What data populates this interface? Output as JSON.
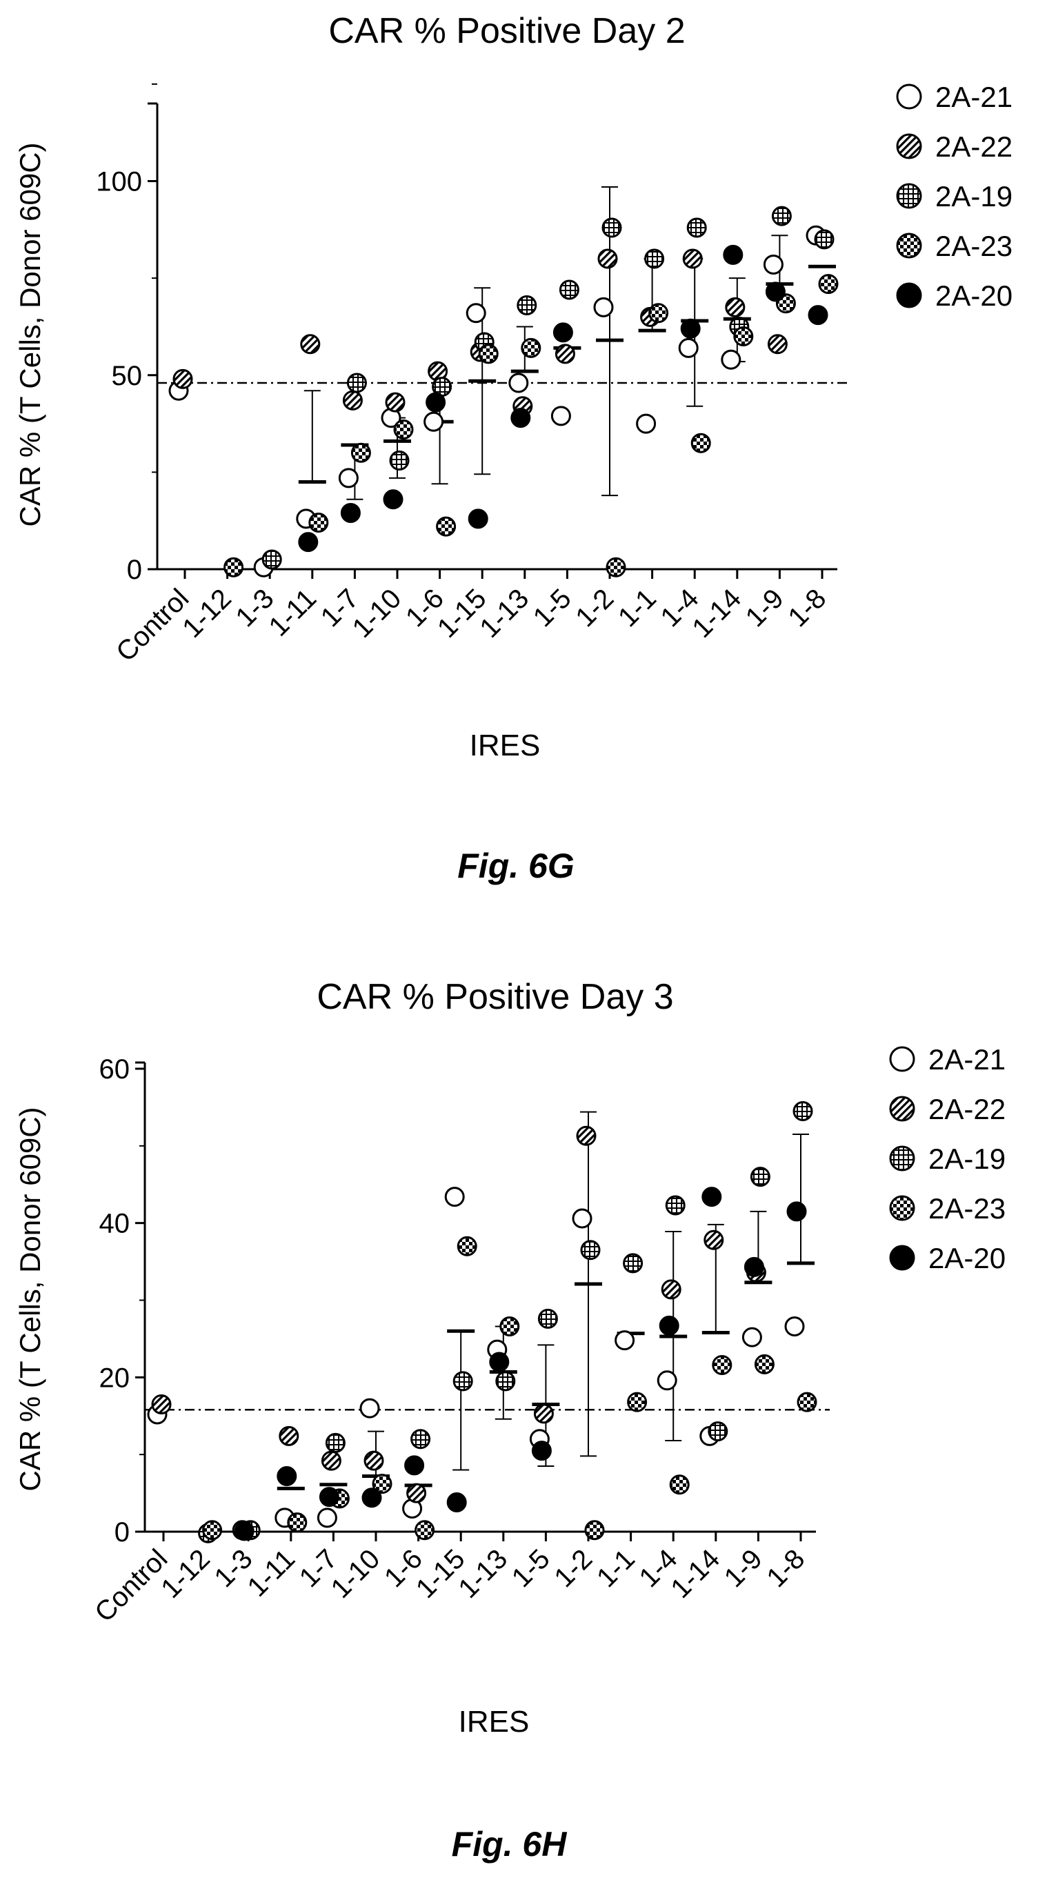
{
  "legend_labels": [
    "2A-21",
    "2A-22",
    "2A-19",
    "2A-23",
    "2A-20"
  ],
  "chart_data": [
    {
      "type": "scatter",
      "title": "CAR % Positive Day 2",
      "xlabel": "IRES",
      "ylabel": "CAR % (T Cells, Donor 609C)",
      "figure_label": "Fig. 6G",
      "yticks": [
        "0",
        "50",
        "100"
      ],
      "ylim": [
        0,
        120
      ],
      "reference_line": 48,
      "categories": [
        "Control",
        "1-12",
        "1-3",
        "1-11",
        "1-7",
        "1-10",
        "1-6",
        "1-15",
        "1-13",
        "1-5",
        "1-2",
        "1-1",
        "1-4",
        "1-14",
        "1-9",
        "1-8"
      ],
      "legend_position": "top-right",
      "series": [
        {
          "name": "2A-21",
          "pattern": "open",
          "values": [
            46,
            null,
            0.5,
            13,
            23.5,
            39,
            38,
            66,
            48,
            39.5,
            67.5,
            37.5,
            57,
            54,
            78.5,
            86
          ]
        },
        {
          "name": "2A-22",
          "pattern": "striped",
          "values": [
            49,
            null,
            null,
            58,
            43.5,
            43,
            51,
            56,
            42,
            55.5,
            80,
            65,
            80,
            67.5,
            58,
            null
          ]
        },
        {
          "name": "2A-19",
          "pattern": "grid",
          "values": [
            null,
            null,
            2.5,
            null,
            48,
            28,
            47,
            58.5,
            68,
            72,
            88,
            80,
            88,
            62.5,
            91,
            85
          ]
        },
        {
          "name": "2A-23",
          "pattern": "checker",
          "values": [
            null,
            0.5,
            null,
            12,
            30,
            36,
            11,
            55.5,
            57,
            null,
            0.5,
            66,
            32.5,
            60,
            68.5,
            73.5
          ]
        },
        {
          "name": "2A-20",
          "pattern": "filled",
          "values": [
            null,
            null,
            null,
            7,
            14.5,
            18,
            43,
            13,
            39,
            61,
            null,
            null,
            62,
            81,
            71.5,
            65.5
          ]
        }
      ],
      "means": [
        null,
        null,
        null,
        22.5,
        32,
        33,
        38,
        48.5,
        51,
        57,
        59,
        61.5,
        64,
        64.5,
        73.5,
        78
      ],
      "sd_upper": [
        null,
        null,
        null,
        46,
        null,
        39,
        48,
        72.5,
        62.5,
        null,
        98.5,
        80,
        80,
        75,
        86,
        null
      ],
      "sd_lower": [
        null,
        null,
        null,
        null,
        18,
        23.5,
        22,
        24.5,
        null,
        null,
        19,
        null,
        42,
        53.5,
        null,
        null
      ]
    },
    {
      "type": "scatter",
      "title": "CAR % Positive Day 3",
      "xlabel": "IRES",
      "ylabel": "CAR % (T Cells, Donor 609C)",
      "figure_label": "Fig. 6H",
      "yticks": [
        "0",
        "20",
        "40",
        "60"
      ],
      "ylim": [
        0,
        60
      ],
      "reference_line": 15.8,
      "categories": [
        "Control",
        "1-12",
        "1-3",
        "1-11",
        "1-7",
        "1-10",
        "1-6",
        "1-15",
        "1-13",
        "1-5",
        "1-2",
        "1-1",
        "1-4",
        "1-14",
        "1-9",
        "1-8"
      ],
      "legend_position": "top-right",
      "series": [
        {
          "name": "2A-21",
          "pattern": "open",
          "values": [
            15.2,
            null,
            0.2,
            1.8,
            1.8,
            16,
            3,
            43.4,
            23.6,
            12,
            40.6,
            24.8,
            19.6,
            12.4,
            25.2,
            26.6
          ]
        },
        {
          "name": "2A-22",
          "pattern": "striped",
          "values": [
            16.5,
            null,
            null,
            12.4,
            9.2,
            9.2,
            5,
            null,
            null,
            15.3,
            51.3,
            null,
            31.4,
            37.8,
            33.6,
            null
          ]
        },
        {
          "name": "2A-19",
          "pattern": "grid",
          "values": [
            null,
            -0.2,
            0.2,
            null,
            11.5,
            null,
            12,
            19.5,
            19.5,
            27.6,
            36.5,
            34.8,
            42.3,
            13,
            46,
            54.5
          ]
        },
        {
          "name": "2A-23",
          "pattern": "checker",
          "values": [
            null,
            0.2,
            null,
            1.2,
            4.3,
            6.2,
            0.2,
            37,
            26.6,
            null,
            0.2,
            16.8,
            6.1,
            21.6,
            21.7,
            16.8
          ]
        },
        {
          "name": "2A-20",
          "pattern": "filled",
          "values": [
            null,
            null,
            0.1,
            7.2,
            4.5,
            4.4,
            8.6,
            3.8,
            22,
            10.5,
            null,
            null,
            26.7,
            43.4,
            34.3,
            41.5
          ]
        }
      ],
      "means": [
        null,
        null,
        null,
        5.6,
        6.1,
        7.2,
        6,
        26,
        20.7,
        16.5,
        32.1,
        25.7,
        25.3,
        25.8,
        32.3,
        34.8
      ],
      "sd_upper": [
        null,
        null,
        null,
        null,
        null,
        13,
        null,
        null,
        26.6,
        24.2,
        54.4,
        null,
        38.9,
        39.8,
        41.5,
        51.5
      ],
      "sd_lower": [
        null,
        null,
        null,
        null,
        null,
        null,
        null,
        8,
        14.6,
        8.5,
        9.8,
        null,
        11.8,
        null,
        null,
        null
      ]
    }
  ]
}
